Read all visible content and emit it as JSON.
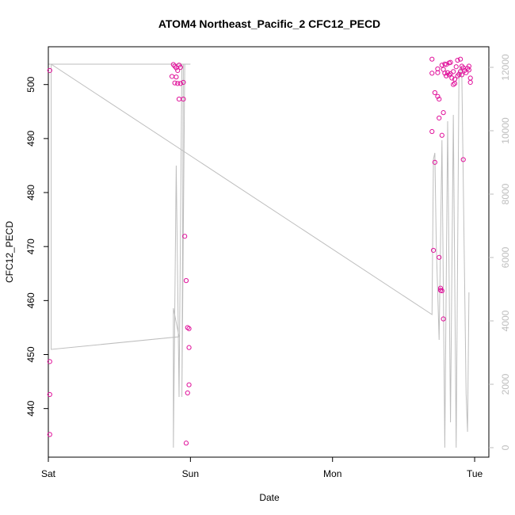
{
  "chart_data": {
    "type": "scatter",
    "title": "ATOM4 Northeast_Pacific_2 CFC12_PECD",
    "xlabel": "Date",
    "ylabel": "CFC12_PECD",
    "xlim": [
      0,
      3.1
    ],
    "ylim": [
      431,
      507
    ],
    "y2lim": [
      -300,
      12650
    ],
    "x_ticks": [
      {
        "value": 0,
        "label": "Sat"
      },
      {
        "value": 1,
        "label": "Sun"
      },
      {
        "value": 2,
        "label": "Mon"
      },
      {
        "value": 3,
        "label": "Tue"
      }
    ],
    "y_ticks": [
      440,
      450,
      460,
      470,
      480,
      490,
      500
    ],
    "y2_ticks": [
      0,
      2000,
      4000,
      6000,
      8000,
      10000,
      12000
    ],
    "colors": {
      "points": "#e0109a",
      "depth_line": "#bebebe",
      "axis": "#000000",
      "right_axis": "#bebebe"
    },
    "series": [
      {
        "name": "CFC12_PECD",
        "points": [
          [
            0.01,
            502.6
          ],
          [
            0.01,
            448.7
          ],
          [
            0.01,
            442.6
          ],
          [
            0.01,
            435.2
          ],
          [
            0.88,
            503.7
          ],
          [
            0.89,
            503.4
          ],
          [
            0.9,
            503.1
          ],
          [
            0.91,
            502.6
          ],
          [
            0.92,
            503.6
          ],
          [
            0.93,
            503.2
          ],
          [
            0.9,
            501.4
          ],
          [
            0.87,
            501.5
          ],
          [
            0.89,
            500.3
          ],
          [
            0.91,
            500.2
          ],
          [
            0.93,
            500.2
          ],
          [
            0.95,
            500.4
          ],
          [
            0.92,
            497.3
          ],
          [
            0.95,
            497.3
          ],
          [
            0.96,
            471.9
          ],
          [
            0.97,
            463.7
          ],
          [
            0.98,
            455.0
          ],
          [
            0.99,
            454.8
          ],
          [
            0.99,
            451.3
          ],
          [
            0.99,
            444.4
          ],
          [
            0.98,
            442.9
          ],
          [
            0.97,
            433.6
          ],
          [
            2.7,
            504.7
          ],
          [
            2.7,
            502.1
          ],
          [
            2.74,
            502.9
          ],
          [
            2.74,
            502.2
          ],
          [
            2.72,
            498.5
          ],
          [
            2.74,
            497.8
          ],
          [
            2.75,
            497.3
          ],
          [
            2.78,
            494.8
          ],
          [
            2.75,
            493.8
          ],
          [
            2.7,
            491.3
          ],
          [
            2.77,
            490.6
          ],
          [
            2.72,
            485.6
          ],
          [
            2.71,
            469.3
          ],
          [
            2.75,
            468.0
          ],
          [
            2.76,
            462.3
          ],
          [
            2.77,
            461.8
          ],
          [
            2.76,
            461.9
          ],
          [
            2.78,
            456.6
          ],
          [
            2.77,
            503.6
          ],
          [
            2.79,
            503.8
          ],
          [
            2.8,
            503.7
          ],
          [
            2.78,
            502.8
          ],
          [
            2.79,
            502.1
          ],
          [
            2.81,
            502.2
          ],
          [
            2.83,
            502.0
          ],
          [
            2.85,
            502.4
          ],
          [
            2.82,
            501.8
          ],
          [
            2.84,
            501.2
          ],
          [
            2.86,
            501.0
          ],
          [
            2.88,
            501.6
          ],
          [
            2.82,
            504.0
          ],
          [
            2.83,
            504.1
          ],
          [
            2.88,
            504.5
          ],
          [
            2.9,
            504.7
          ],
          [
            2.91,
            503.4
          ],
          [
            2.92,
            503.1
          ],
          [
            2.93,
            502.6
          ],
          [
            2.94,
            502.2
          ],
          [
            2.95,
            503.0
          ],
          [
            2.96,
            503.4
          ],
          [
            2.96,
            502.7
          ],
          [
            2.97,
            501.2
          ],
          [
            2.97,
            500.4
          ],
          [
            2.89,
            501.9
          ],
          [
            2.9,
            502.4
          ],
          [
            2.91,
            501.8
          ],
          [
            2.85,
            500.0
          ],
          [
            2.86,
            500.2
          ],
          [
            2.8,
            501.6
          ],
          [
            2.87,
            503.3
          ],
          [
            2.92,
            486.1
          ]
        ]
      },
      {
        "name": "depth",
        "axis": "right",
        "points": [
          [
            0,
            12100
          ],
          [
            0.02,
            12100
          ],
          [
            0.02,
            3100
          ],
          [
            0.92,
            3500
          ],
          [
            0.88,
            4400
          ],
          [
            0.88,
            0
          ],
          [
            0.9,
            8900
          ],
          [
            0.92,
            1600
          ],
          [
            0.94,
            12100
          ],
          [
            0.95,
            12100
          ],
          [
            0.94,
            1600
          ],
          [
            0.96,
            12100
          ],
          [
            0.98,
            12100
          ],
          [
            1.0,
            12100
          ],
          [
            0.02,
            12100
          ],
          [
            2.7,
            4200
          ],
          [
            2.71,
            9100
          ],
          [
            2.72,
            9300
          ],
          [
            2.73,
            6400
          ],
          [
            2.75,
            3400
          ],
          [
            2.77,
            9700
          ],
          [
            2.79,
            0
          ],
          [
            2.81,
            10300
          ],
          [
            2.83,
            800
          ],
          [
            2.85,
            10500
          ],
          [
            2.87,
            0
          ],
          [
            2.89,
            11900
          ],
          [
            2.9,
            12000
          ],
          [
            2.91,
            11700
          ],
          [
            2.94,
            1700
          ],
          [
            2.95,
            500
          ],
          [
            2.96,
            4900
          ]
        ]
      }
    ]
  }
}
